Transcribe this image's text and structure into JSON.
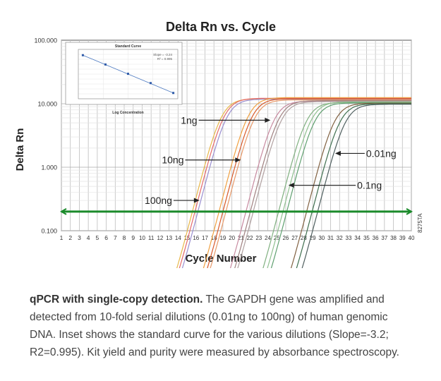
{
  "chart_data": {
    "type": "line",
    "title": "Delta Rn vs. Cycle",
    "xlabel": "Cycle Number",
    "ylabel": "Delta Rn",
    "y_scale": "log",
    "ylim": [
      0.1,
      100
    ],
    "xlim": [
      1,
      40
    ],
    "y_ticks": [
      "100.000",
      "10.000",
      "1.000",
      "0.100"
    ],
    "x_ticks": [
      "1",
      "2",
      "3",
      "4",
      "5",
      "6",
      "7",
      "8",
      "9",
      "10",
      "11",
      "12",
      "13",
      "14",
      "15",
      "16",
      "17",
      "18",
      "19",
      "20",
      "21",
      "22",
      "23",
      "24",
      "25",
      "26",
      "27",
      "28",
      "29",
      "30",
      "31",
      "32",
      "33",
      "34",
      "35",
      "36",
      "37",
      "38",
      "39",
      "40"
    ],
    "threshold": 0.2,
    "threshold_color": "#1a8a2a",
    "series": [
      {
        "color": "#e8b84a",
        "ct": 16.4,
        "max": 12.0
      },
      {
        "color": "#e56a6a",
        "ct": 16.7,
        "max": 12.2
      },
      {
        "color": "#9a8fd0",
        "ct": 17.0,
        "max": 11.8
      },
      {
        "color": "#f0a040",
        "ct": 19.4,
        "max": 12.5
      },
      {
        "color": "#d85a2a",
        "ct": 19.8,
        "max": 12.0
      },
      {
        "color": "#e89a6a",
        "ct": 20.1,
        "max": 11.5
      },
      {
        "color": "#c88aa0",
        "ct": 22.3,
        "max": 11.0
      },
      {
        "color": "#a08080",
        "ct": 22.8,
        "max": 11.2
      },
      {
        "color": "#b0a0a0",
        "ct": 23.1,
        "max": 10.8
      },
      {
        "color": "#80b080",
        "ct": 25.9,
        "max": 10.5
      },
      {
        "color": "#90c090",
        "ct": 26.4,
        "max": 10.7
      },
      {
        "color": "#60a070",
        "ct": 26.8,
        "max": 10.3
      },
      {
        "color": "#806040",
        "ct": 29.0,
        "max": 10.2
      },
      {
        "color": "#407050",
        "ct": 29.6,
        "max": 10.0
      },
      {
        "color": "#506060",
        "ct": 30.2,
        "max": 9.8
      }
    ],
    "annotations": [
      {
        "label": "1ng",
        "y": 5.5,
        "x_start": 16.3,
        "x_end": 24.3
      },
      {
        "label": "10ng",
        "y": 1.3,
        "x_start": 14.8,
        "x_end": 21.0
      },
      {
        "label": "100ng",
        "y": 0.3,
        "x_start": 13.5,
        "x_end": 16.4
      },
      {
        "label": "0.01ng",
        "y": 1.65,
        "x_start": 34.8,
        "x_end": 31.5
      },
      {
        "label": "0.1ng",
        "y": 0.52,
        "x_start": 33.8,
        "x_end": 26.3
      }
    ],
    "side_label": "8275TA",
    "inset": {
      "title": "Standard Curve",
      "xlabel": "Log Concentration",
      "slope_text": "Slope = -3.24",
      "r2_text": "R² = 0.995",
      "points": [
        [
          -2,
          35
        ],
        [
          -1,
          31.8
        ],
        [
          0,
          28.6
        ],
        [
          1,
          25.4
        ],
        [
          2,
          22.0
        ]
      ]
    }
  },
  "caption": {
    "bold": "qPCR with single-copy detection.",
    "text": " The GAPDH gene was amplified and detected from 10-fold serial dilutions (0.01ng to 100ng) of human genomic DNA. Inset shows the standard curve for the various dilutions (Slope=-3.2; R2=0.995). Kit yield and purity were measured by absorbance spectroscopy."
  }
}
